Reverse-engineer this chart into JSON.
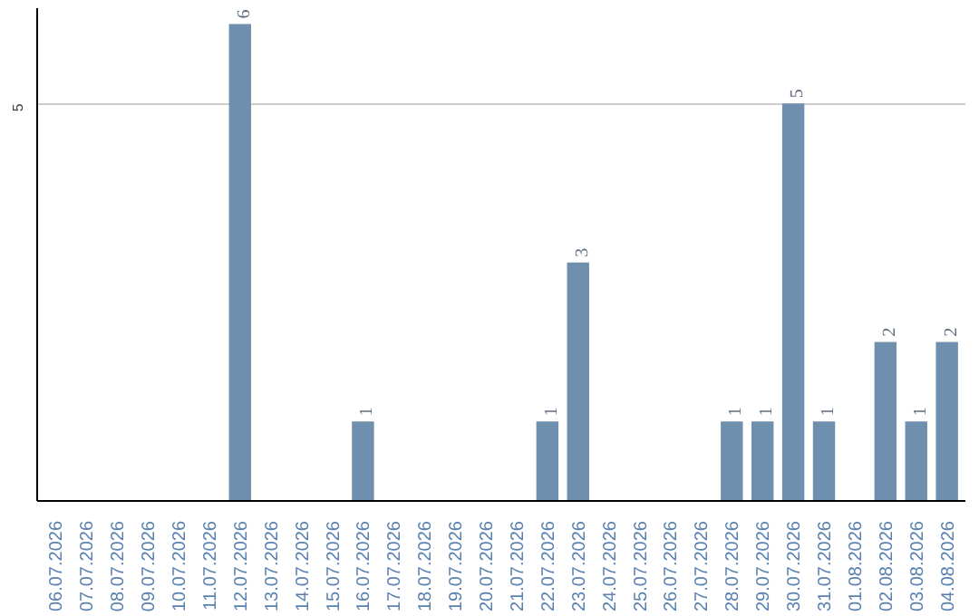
{
  "chart_data": {
    "type": "bar",
    "categories": [
      "06.07.2026",
      "07.07.2026",
      "08.07.2026",
      "09.07.2026",
      "10.07.2026",
      "11.07.2026",
      "12.07.2026",
      "13.07.2026",
      "14.07.2026",
      "15.07.2026",
      "16.07.2026",
      "17.07.2026",
      "18.07.2026",
      "19.07.2026",
      "20.07.2026",
      "21.07.2026",
      "22.07.2026",
      "23.07.2026",
      "24.07.2026",
      "25.07.2026",
      "26.07.2026",
      "27.07.2026",
      "28.07.2026",
      "29.07.2026",
      "30.07.2026",
      "31.07.2026",
      "01.08.2026",
      "02.08.2026",
      "03.08.2026",
      "04.08.2026"
    ],
    "values": [
      0,
      0,
      0,
      0,
      0,
      0,
      6,
      0,
      0,
      0,
      1,
      0,
      0,
      0,
      0,
      0,
      1,
      3,
      0,
      0,
      0,
      0,
      1,
      1,
      5,
      1,
      0,
      2,
      1,
      2
    ],
    "value_labels": [
      null,
      null,
      null,
      null,
      null,
      null,
      "6",
      null,
      null,
      null,
      "1",
      null,
      null,
      null,
      null,
      null,
      "1",
      "3",
      null,
      null,
      null,
      null,
      "1",
      "1",
      "5",
      "1",
      null,
      "2",
      "1",
      "2"
    ],
    "color": "#6f8fae",
    "ylim": [
      0,
      6.2
    ],
    "yticks": [
      5
    ],
    "grid": "y"
  }
}
